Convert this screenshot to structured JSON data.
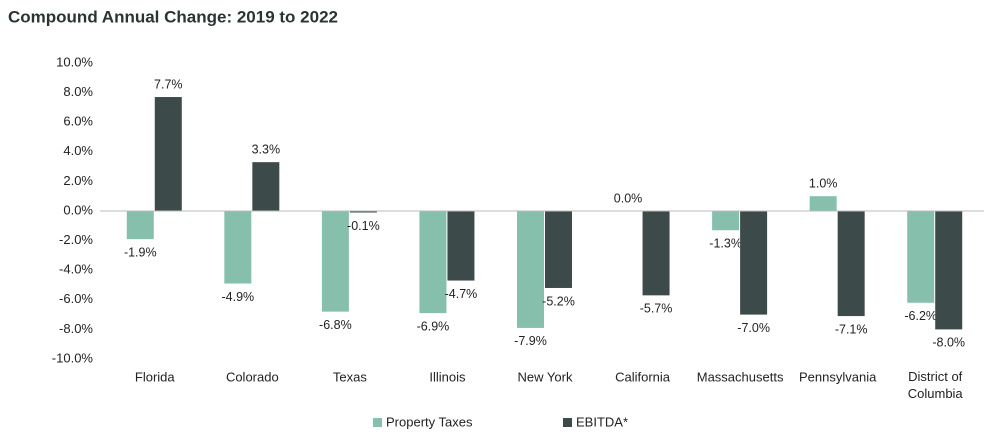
{
  "chart_data": {
    "type": "bar",
    "title": "Compound Annual Change:  2019 to 2022",
    "categories": [
      "Florida",
      "Colorado",
      "Texas",
      "Illinois",
      "New York",
      "California",
      "Massachusetts",
      "Pennsylvania",
      "District of Columbia"
    ],
    "series": [
      {
        "name": "Property Taxes",
        "color": "#86bfac",
        "values": [
          -1.9,
          -4.9,
          -6.8,
          -6.9,
          -7.9,
          0.0,
          -1.3,
          1.0,
          -6.2
        ],
        "value_labels": [
          "-1.9%",
          "-4.9%",
          "-6.8%",
          "-6.9%",
          "-7.9%",
          "0.0%",
          "-1.3%",
          "1.0%",
          "-6.2%"
        ]
      },
      {
        "name": "EBITDA*",
        "color": "#3d4a4a",
        "values": [
          7.7,
          3.3,
          -0.1,
          -4.7,
          -5.2,
          -5.7,
          -7.0,
          -7.1,
          -8.0
        ],
        "value_labels": [
          "7.7%",
          "3.3%",
          "-0.1%",
          "-4.7%",
          "-5.2%",
          "-5.7%",
          "-7.0%",
          "-7.1%",
          "-8.0%"
        ]
      }
    ],
    "ylim": [
      -10,
      10
    ],
    "yticks": [
      {
        "value": -10,
        "label": "-10.0%"
      },
      {
        "value": -8,
        "label": "-8.0%"
      },
      {
        "value": -6,
        "label": "-6.0%"
      },
      {
        "value": -4,
        "label": "-4.0%"
      },
      {
        "value": -2,
        "label": "-2.0%"
      },
      {
        "value": 0,
        "label": "0.0%"
      },
      {
        "value": 2,
        "label": "2.0%"
      },
      {
        "value": 4,
        "label": "4.0%"
      },
      {
        "value": 6,
        "label": "6.0%"
      },
      {
        "value": 8,
        "label": "8.0%"
      },
      {
        "value": 10,
        "label": "10.0%"
      }
    ],
    "grid": false,
    "legend": "bottom"
  }
}
